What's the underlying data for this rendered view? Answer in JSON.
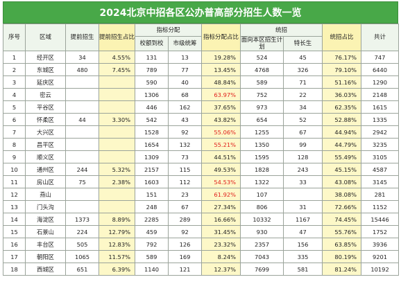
{
  "title": "2024北京中招各区公办普高部分招生人数一览",
  "headers": {
    "seq": "序号",
    "district": "区域",
    "early": "提前招生",
    "early_ratio": "提前招生占比",
    "quota_group": "指标分配",
    "quota_school": "校额到校",
    "quota_city": "市级统筹",
    "quota_ratio": "指标分配占比",
    "unified_group": "统招",
    "unified_local": "面向本区招生计划",
    "unified_special": "特长生",
    "unified_ratio": "统招占比",
    "total": "共计"
  },
  "rows": [
    {
      "seq": "1",
      "district": "经开区",
      "early": "34",
      "early_ratio": "4.55%",
      "quota_school": "131",
      "quota_city": "13",
      "quota_ratio": "19.28%",
      "quota_red": false,
      "unified_local": "524",
      "unified_special": "45",
      "unified_ratio": "76.17%",
      "total": "747"
    },
    {
      "seq": "2",
      "district": "东城区",
      "early": "480",
      "early_ratio": "7.45%",
      "quota_school": "789",
      "quota_city": "77",
      "quota_ratio": "13.45%",
      "quota_red": false,
      "unified_local": "4768",
      "unified_special": "326",
      "unified_ratio": "79.10%",
      "total": "6440"
    },
    {
      "seq": "3",
      "district": "延庆区",
      "early": "",
      "early_ratio": "",
      "quota_school": "590",
      "quota_city": "40",
      "quota_ratio": "48.84%",
      "quota_red": false,
      "unified_local": "589",
      "unified_special": "71",
      "unified_ratio": "51.16%",
      "total": "1290"
    },
    {
      "seq": "4",
      "district": "密云",
      "early": "",
      "early_ratio": "",
      "quota_school": "1306",
      "quota_city": "68",
      "quota_ratio": "63.97%",
      "quota_red": true,
      "unified_local": "752",
      "unified_special": "22",
      "unified_ratio": "36.03%",
      "total": "2148"
    },
    {
      "seq": "5",
      "district": "平谷区",
      "early": "",
      "early_ratio": "",
      "quota_school": "446",
      "quota_city": "162",
      "quota_ratio": "37.65%",
      "quota_red": false,
      "unified_local": "973",
      "unified_special": "34",
      "unified_ratio": "62.35%",
      "total": "1615"
    },
    {
      "seq": "6",
      "district": "怀柔区",
      "early": "44",
      "early_ratio": "3.30%",
      "quota_school": "542",
      "quota_city": "43",
      "quota_ratio": "43.82%",
      "quota_red": false,
      "unified_local": "654",
      "unified_special": "52",
      "unified_ratio": "52.88%",
      "total": "1335"
    },
    {
      "seq": "7",
      "district": "大兴区",
      "early": "",
      "early_ratio": "",
      "quota_school": "1528",
      "quota_city": "92",
      "quota_ratio": "55.06%",
      "quota_red": true,
      "unified_local": "1255",
      "unified_special": "67",
      "unified_ratio": "44.94%",
      "total": "2942"
    },
    {
      "seq": "8",
      "district": "昌平区",
      "early": "",
      "early_ratio": "",
      "quota_school": "1654",
      "quota_city": "132",
      "quota_ratio": "55.21%",
      "quota_red": true,
      "unified_local": "1350",
      "unified_special": "99",
      "unified_ratio": "44.79%",
      "total": "3235"
    },
    {
      "seq": "9",
      "district": "顺义区",
      "early": "",
      "early_ratio": "",
      "quota_school": "1309",
      "quota_city": "73",
      "quota_ratio": "44.51%",
      "quota_red": false,
      "unified_local": "1595",
      "unified_special": "128",
      "unified_ratio": "55.49%",
      "total": "3105"
    },
    {
      "seq": "10",
      "district": "通州区",
      "early": "244",
      "early_ratio": "5.32%",
      "quota_school": "2157",
      "quota_city": "115",
      "quota_ratio": "49.53%",
      "quota_red": false,
      "unified_local": "1828",
      "unified_special": "243",
      "unified_ratio": "45.15%",
      "total": "4587"
    },
    {
      "seq": "11",
      "district": "房山区",
      "early": "75",
      "early_ratio": "2.38%",
      "quota_school": "1603",
      "quota_city": "112",
      "quota_ratio": "54.53%",
      "quota_red": true,
      "unified_local": "1322",
      "unified_special": "33",
      "unified_ratio": "43.08%",
      "total": "3145"
    },
    {
      "seq": "12",
      "district": "燕山",
      "early": "",
      "early_ratio": "",
      "quota_school": "151",
      "quota_city": "23",
      "quota_ratio": "61.92%",
      "quota_red": true,
      "unified_local": "107",
      "unified_special": "",
      "unified_ratio": "38.08%",
      "total": "281"
    },
    {
      "seq": "13",
      "district": "门头沟",
      "early": "",
      "early_ratio": "",
      "quota_school": "248",
      "quota_city": "67",
      "quota_ratio": "27.34%",
      "quota_red": false,
      "unified_local": "806",
      "unified_special": "31",
      "unified_ratio": "72.66%",
      "total": "1152"
    },
    {
      "seq": "14",
      "district": "海淀区",
      "early": "1373",
      "early_ratio": "8.89%",
      "quota_school": "2285",
      "quota_city": "289",
      "quota_ratio": "16.66%",
      "quota_red": false,
      "unified_local": "10332",
      "unified_special": "1167",
      "unified_ratio": "74.45%",
      "total": "15446"
    },
    {
      "seq": "15",
      "district": "石景山",
      "early": "224",
      "early_ratio": "12.79%",
      "quota_school": "459",
      "quota_city": "92",
      "quota_ratio": "31.45%",
      "quota_red": false,
      "unified_local": "930",
      "unified_special": "47",
      "unified_ratio": "55.76%",
      "total": "1752"
    },
    {
      "seq": "16",
      "district": "丰台区",
      "early": "505",
      "early_ratio": "12.83%",
      "quota_school": "792",
      "quota_city": "126",
      "quota_ratio": "23.32%",
      "quota_red": false,
      "unified_local": "2357",
      "unified_special": "156",
      "unified_ratio": "63.85%",
      "total": "3936"
    },
    {
      "seq": "17",
      "district": "朝阳区",
      "early": "1065",
      "early_ratio": "11.57%",
      "quota_school": "589",
      "quota_city": "169",
      "quota_ratio": "8.24%",
      "quota_red": false,
      "unified_local": "7043",
      "unified_special": "335",
      "unified_ratio": "80.19%",
      "total": "9201"
    },
    {
      "seq": "18",
      "district": "西城区",
      "early": "651",
      "early_ratio": "6.39%",
      "quota_school": "1140",
      "quota_city": "121",
      "quota_ratio": "12.37%",
      "quota_red": false,
      "unified_local": "7699",
      "unified_special": "581",
      "unified_ratio": "81.24%",
      "total": "10192"
    }
  ]
}
